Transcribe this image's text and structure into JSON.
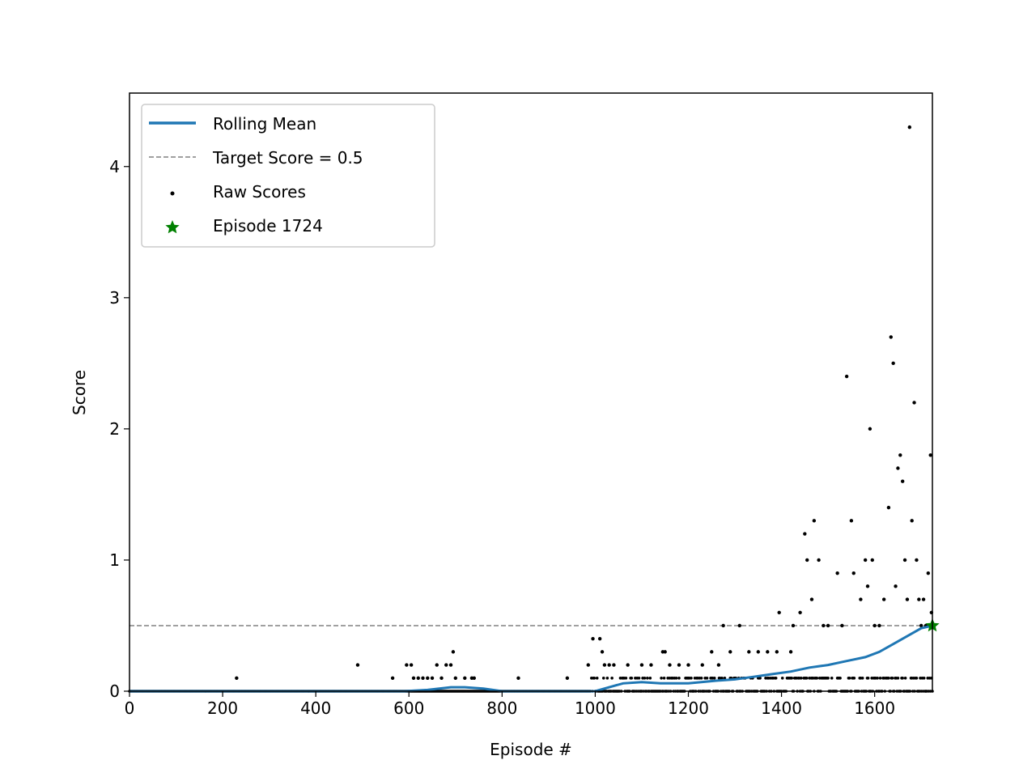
{
  "chart_data": {
    "type": "scatter",
    "xlabel": "Episode #",
    "ylabel": "Score",
    "xlim": [
      0,
      1724
    ],
    "ylim": [
      0,
      4.56
    ],
    "x_ticks": [
      0,
      200,
      400,
      600,
      800,
      1000,
      1200,
      1400,
      1600
    ],
    "x_tick_labels": [
      "0",
      "200",
      "400",
      "600",
      "800",
      "1000",
      "1200",
      "1400",
      "1600"
    ],
    "y_ticks": [
      0,
      1,
      2,
      3,
      4
    ],
    "y_tick_labels": [
      "0",
      "1",
      "2",
      "3",
      "4"
    ],
    "grid": false,
    "legend_position": "upper-left",
    "colors": {
      "rolling_mean": "#1f77b4",
      "target": "#808080",
      "raw": "#000000",
      "marker": "#008000"
    },
    "target_score": 0.5,
    "solved_episode": 1724,
    "legend": [
      {
        "key": "rolling",
        "label": "Rolling Mean"
      },
      {
        "key": "target",
        "label": "Target Score = 0.5"
      },
      {
        "key": "raw",
        "label": "Raw Scores"
      },
      {
        "key": "solved",
        "label": "Episode 1724"
      }
    ],
    "rolling_mean": [
      [
        0,
        0
      ],
      [
        590,
        0
      ],
      [
        640,
        0.01
      ],
      [
        690,
        0.03
      ],
      [
        720,
        0.03
      ],
      [
        760,
        0.02
      ],
      [
        800,
        0.0
      ],
      [
        1000,
        0.0
      ],
      [
        1030,
        0.03
      ],
      [
        1060,
        0.06
      ],
      [
        1100,
        0.07
      ],
      [
        1140,
        0.06
      ],
      [
        1200,
        0.06
      ],
      [
        1260,
        0.08
      ],
      [
        1300,
        0.09
      ],
      [
        1340,
        0.11
      ],
      [
        1380,
        0.13
      ],
      [
        1420,
        0.15
      ],
      [
        1460,
        0.18
      ],
      [
        1500,
        0.2
      ],
      [
        1540,
        0.23
      ],
      [
        1580,
        0.26
      ],
      [
        1610,
        0.3
      ],
      [
        1640,
        0.36
      ],
      [
        1660,
        0.4
      ],
      [
        1680,
        0.44
      ],
      [
        1700,
        0.48
      ],
      [
        1724,
        0.5
      ]
    ],
    "raw_scores_extra": [
      [
        230,
        0.1
      ],
      [
        490,
        0.2
      ],
      [
        565,
        0.1
      ],
      [
        595,
        0.2
      ],
      [
        605,
        0.2
      ],
      [
        610,
        0.1
      ],
      [
        620,
        0.1
      ],
      [
        630,
        0.1
      ],
      [
        640,
        0.1
      ],
      [
        650,
        0.1
      ],
      [
        660,
        0.2
      ],
      [
        670,
        0.1
      ],
      [
        680,
        0.2
      ],
      [
        690,
        0.2
      ],
      [
        695,
        0.3
      ],
      [
        700,
        0.1
      ],
      [
        720,
        0.1
      ],
      [
        735,
        0.1
      ],
      [
        740,
        0.1
      ],
      [
        835,
        0.1
      ],
      [
        940,
        0.1
      ],
      [
        985,
        0.2
      ],
      [
        995,
        0.4
      ],
      [
        1010,
        0.4
      ],
      [
        1015,
        0.3
      ],
      [
        1020,
        0.2
      ],
      [
        1030,
        0.2
      ],
      [
        1040,
        0.2
      ],
      [
        1070,
        0.2
      ],
      [
        1100,
        0.2
      ],
      [
        1120,
        0.2
      ],
      [
        1145,
        0.3
      ],
      [
        1150,
        0.3
      ],
      [
        1160,
        0.2
      ],
      [
        1180,
        0.2
      ],
      [
        1200,
        0.2
      ],
      [
        1230,
        0.2
      ],
      [
        1250,
        0.3
      ],
      [
        1265,
        0.2
      ],
      [
        1275,
        0.5
      ],
      [
        1290,
        0.3
      ],
      [
        1310,
        0.5
      ],
      [
        1330,
        0.3
      ],
      [
        1350,
        0.3
      ],
      [
        1370,
        0.3
      ],
      [
        1390,
        0.3
      ],
      [
        1395,
        0.6
      ],
      [
        1420,
        0.3
      ],
      [
        1425,
        0.5
      ],
      [
        1440,
        0.6
      ],
      [
        1450,
        1.2
      ],
      [
        1455,
        1.0
      ],
      [
        1465,
        0.7
      ],
      [
        1470,
        1.3
      ],
      [
        1480,
        1.0
      ],
      [
        1490,
        0.5
      ],
      [
        1500,
        0.5
      ],
      [
        1520,
        0.9
      ],
      [
        1530,
        0.5
      ],
      [
        1540,
        2.4
      ],
      [
        1550,
        1.3
      ],
      [
        1555,
        0.9
      ],
      [
        1570,
        0.7
      ],
      [
        1580,
        1.0
      ],
      [
        1585,
        0.8
      ],
      [
        1590,
        2.0
      ],
      [
        1595,
        1.0
      ],
      [
        1600,
        0.5
      ],
      [
        1610,
        0.5
      ],
      [
        1620,
        0.7
      ],
      [
        1630,
        1.4
      ],
      [
        1635,
        2.7
      ],
      [
        1640,
        2.5
      ],
      [
        1645,
        0.8
      ],
      [
        1650,
        1.7
      ],
      [
        1655,
        1.8
      ],
      [
        1660,
        1.6
      ],
      [
        1665,
        1.0
      ],
      [
        1670,
        0.7
      ],
      [
        1675,
        4.3
      ],
      [
        1680,
        1.3
      ],
      [
        1685,
        2.2
      ],
      [
        1690,
        1.0
      ],
      [
        1695,
        0.7
      ],
      [
        1700,
        0.5
      ],
      [
        1705,
        0.7
      ],
      [
        1710,
        0.5
      ],
      [
        1715,
        0.9
      ],
      [
        1720,
        1.8
      ],
      [
        1722,
        0.6
      ]
    ]
  }
}
